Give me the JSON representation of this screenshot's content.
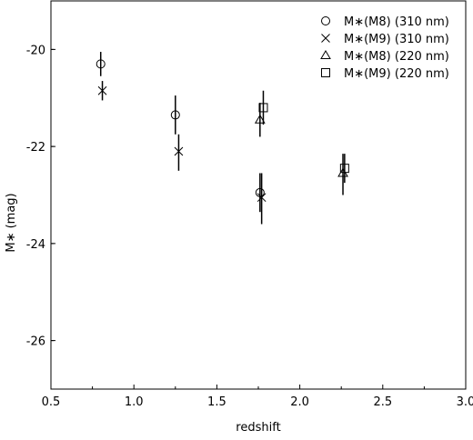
{
  "chart_data": {
    "type": "scatter",
    "title": "",
    "xlabel": "redshift",
    "ylabel": "M∗ (mag)",
    "xlim": [
      0.5,
      3.0
    ],
    "ylim": [
      -27,
      -19
    ],
    "y_inverted": true,
    "x_ticks": [
      "0.5",
      "1.0",
      "1.5",
      "2.0",
      "2.5",
      "3.0"
    ],
    "y_ticks": [
      "-20",
      "-22",
      "-24",
      "-26"
    ],
    "grid": false,
    "legend_position": "top-right",
    "series": [
      {
        "name": "M∗(M8) (310 nm)",
        "marker": "circle",
        "points": [
          {
            "x": 0.8,
            "y": -20.3,
            "err_low": -20.55,
            "err_high": -20.05
          },
          {
            "x": 1.25,
            "y": -21.35,
            "err_low": -21.75,
            "err_high": -20.95
          },
          {
            "x": 1.76,
            "y": -22.95,
            "err_low": -23.35,
            "err_high": -22.55
          }
        ]
      },
      {
        "name": "M∗(M9) (310 nm)",
        "marker": "cross",
        "points": [
          {
            "x": 0.81,
            "y": -20.85,
            "err_low": -21.05,
            "err_high": -20.65
          },
          {
            "x": 1.27,
            "y": -22.1,
            "err_low": -22.5,
            "err_high": -21.75
          },
          {
            "x": 1.77,
            "y": -23.05,
            "err_low": -23.6,
            "err_high": -22.55
          }
        ]
      },
      {
        "name": "M∗(M8) (220 nm)",
        "marker": "triangle",
        "points": [
          {
            "x": 1.76,
            "y": -21.45,
            "err_low": -21.8,
            "err_high": -21.1
          },
          {
            "x": 2.26,
            "y": -22.55,
            "err_low": -23.0,
            "err_high": -22.15
          }
        ]
      },
      {
        "name": "M∗(M9) (220 nm)",
        "marker": "square",
        "points": [
          {
            "x": 1.78,
            "y": -21.2,
            "err_low": -21.55,
            "err_high": -20.85
          },
          {
            "x": 2.27,
            "y": -22.45,
            "err_low": -22.75,
            "err_high": -22.15
          }
        ]
      }
    ]
  }
}
